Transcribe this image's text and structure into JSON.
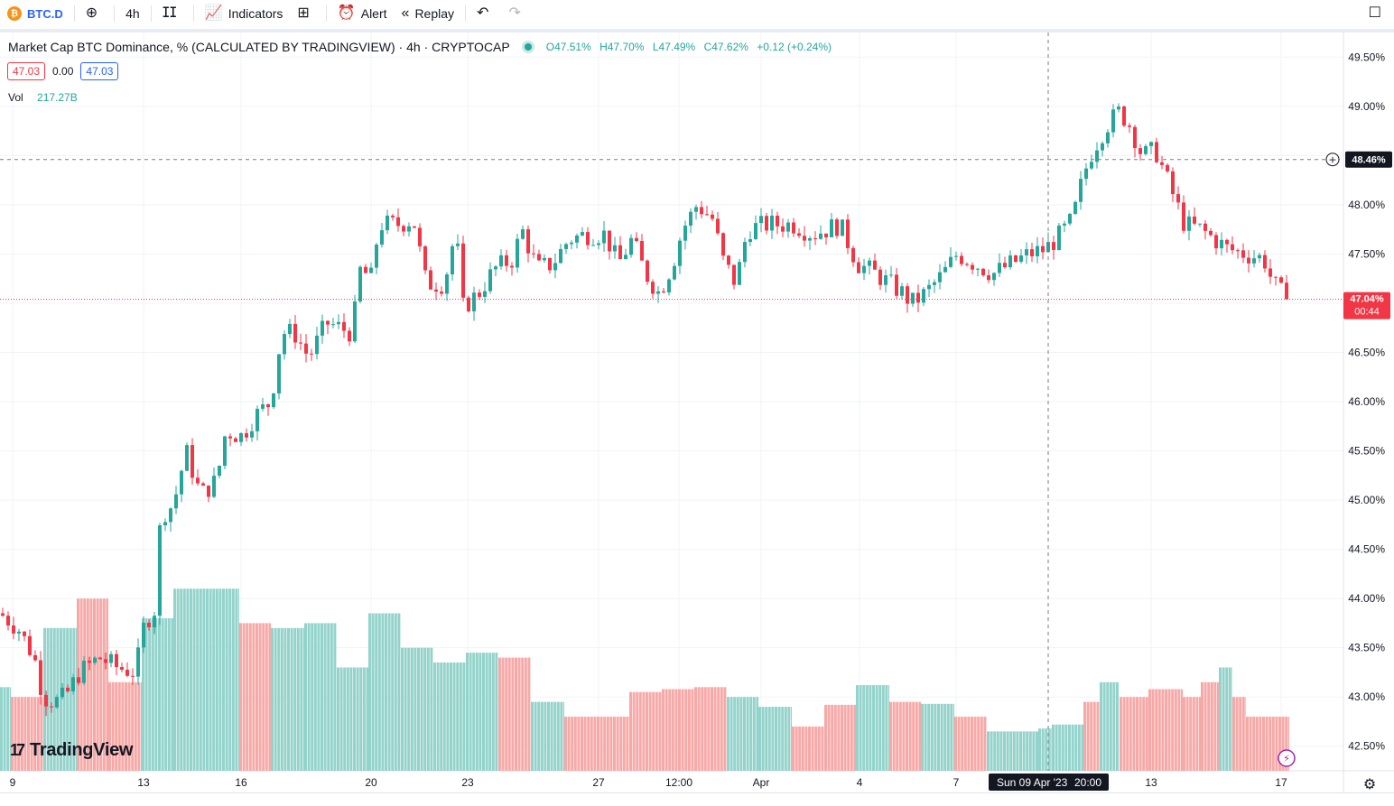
{
  "toolbar": {
    "symbol": "BTC.D",
    "symbol_icon": "bitcoin-icon",
    "interval": "4h",
    "indicators_label": "Indicators",
    "alert_label": "Alert",
    "replay_label": "Replay"
  },
  "legend": {
    "title": "Market Cap BTC Dominance, % (CALCULATED BY TRADINGVIEW) · 4h · CRYPTOCAP",
    "open": "O47.51%",
    "high": "H47.70%",
    "low": "L47.49%",
    "close": "C47.62%",
    "change": "+0.12 (+0.24%)",
    "study_left": "47.03",
    "study_mid": "0.00",
    "study_right": "47.03",
    "volume_label": "Vol",
    "volume_value": "217.27B"
  },
  "crosshair": {
    "price_label": "48.46%",
    "time_label": "Sun 09 Apr '23",
    "time_hour": "20:00"
  },
  "last_price": {
    "label": "47.04%",
    "countdown": "00:44"
  },
  "branding": "TradingView",
  "colors": {
    "up": "#26a69a",
    "down": "#f23645",
    "up_vol": "#94d3cb",
    "down_vol": "#f7a9a7",
    "accent": "#2962ff"
  },
  "chart_data": {
    "type": "candlestick",
    "ylim": [
      42.25,
      49.75
    ],
    "yticks": [
      "42.50%",
      "43.00%",
      "43.50%",
      "44.00%",
      "44.50%",
      "45.00%",
      "45.50%",
      "46.00%",
      "46.50%",
      "47.00%",
      "47.50%",
      "48.00%",
      "48.50%",
      "49.00%",
      "49.50%"
    ],
    "xticks": [
      "9",
      "13",
      "16",
      "20",
      "23",
      "27",
      "12:00",
      "Apr",
      "4",
      "7",
      "13",
      "17"
    ],
    "anchors": [
      [
        0,
        43.85
      ],
      [
        20,
        43.7
      ],
      [
        38,
        43.4
      ],
      [
        48,
        43.0
      ],
      [
        60,
        42.95
      ],
      [
        72,
        43.0
      ],
      [
        88,
        43.25
      ],
      [
        110,
        43.4
      ],
      [
        130,
        43.3
      ],
      [
        150,
        43.25
      ],
      [
        160,
        43.75
      ],
      [
        172,
        43.9
      ],
      [
        178,
        44.85
      ],
      [
        192,
        44.95
      ],
      [
        206,
        45.5
      ],
      [
        222,
        45.05
      ],
      [
        240,
        45.2
      ],
      [
        250,
        45.7
      ],
      [
        268,
        45.65
      ],
      [
        282,
        45.85
      ],
      [
        300,
        46.0
      ],
      [
        312,
        46.7
      ],
      [
        326,
        46.7
      ],
      [
        342,
        46.45
      ],
      [
        362,
        46.8
      ],
      [
        390,
        46.7
      ],
      [
        400,
        47.4
      ],
      [
        410,
        47.2
      ],
      [
        420,
        47.8
      ],
      [
        440,
        47.8
      ],
      [
        458,
        47.85
      ],
      [
        472,
        47.2
      ],
      [
        492,
        47.2
      ],
      [
        505,
        47.75
      ],
      [
        512,
        46.95
      ],
      [
        530,
        47.1
      ],
      [
        548,
        47.35
      ],
      [
        568,
        47.45
      ],
      [
        578,
        47.75
      ],
      [
        595,
        47.35
      ],
      [
        612,
        47.4
      ],
      [
        630,
        47.65
      ],
      [
        650,
        47.7
      ],
      [
        670,
        47.7
      ],
      [
        685,
        47.4
      ],
      [
        700,
        47.65
      ],
      [
        715,
        47.3
      ],
      [
        730,
        47.1
      ],
      [
        745,
        47.4
      ],
      [
        756,
        47.75
      ],
      [
        772,
        48.0
      ],
      [
        790,
        47.85
      ],
      [
        800,
        47.45
      ],
      [
        815,
        47.2
      ],
      [
        828,
        47.75
      ],
      [
        850,
        47.8
      ],
      [
        880,
        47.8
      ],
      [
        900,
        47.7
      ],
      [
        930,
        47.8
      ],
      [
        950,
        47.4
      ],
      [
        970,
        47.3
      ],
      [
        985,
        47.2
      ],
      [
        1000,
        47.1
      ],
      [
        1010,
        47.0
      ],
      [
        1025,
        47.1
      ],
      [
        1045,
        47.3
      ],
      [
        1060,
        47.5
      ],
      [
        1080,
        47.4
      ],
      [
        1100,
        47.3
      ],
      [
        1120,
        47.4
      ],
      [
        1140,
        47.5
      ],
      [
        1158,
        47.55
      ],
      [
        1175,
        47.7
      ],
      [
        1188,
        47.85
      ],
      [
        1200,
        48.3
      ],
      [
        1210,
        48.55
      ],
      [
        1225,
        48.8
      ],
      [
        1240,
        48.95
      ],
      [
        1252,
        48.8
      ],
      [
        1265,
        48.5
      ],
      [
        1280,
        48.55
      ],
      [
        1295,
        48.2
      ],
      [
        1312,
        47.8
      ],
      [
        1330,
        47.75
      ],
      [
        1345,
        47.65
      ],
      [
        1360,
        47.55
      ],
      [
        1380,
        47.5
      ],
      [
        1400,
        47.45
      ],
      [
        1410,
        47.2
      ],
      [
        1425,
        47.04
      ]
    ],
    "volume_segments": [
      [
        0,
        12,
        43.1,
        "up"
      ],
      [
        12,
        48,
        43.0,
        "down"
      ],
      [
        48,
        85,
        43.7,
        "up"
      ],
      [
        85,
        120,
        44.0,
        "down"
      ],
      [
        120,
        157,
        43.15,
        "down"
      ],
      [
        157,
        192,
        43.8,
        "up"
      ],
      [
        192,
        265,
        44.1,
        "up"
      ],
      [
        265,
        300,
        43.75,
        "down"
      ],
      [
        300,
        337,
        43.7,
        "up"
      ],
      [
        337,
        373,
        43.75,
        "up"
      ],
      [
        373,
        408,
        43.3,
        "up"
      ],
      [
        408,
        444,
        43.85,
        "up"
      ],
      [
        444,
        480,
        43.5,
        "up"
      ],
      [
        480,
        516,
        43.35,
        "up"
      ],
      [
        516,
        552,
        43.45,
        "up"
      ],
      [
        552,
        588,
        43.4,
        "down"
      ],
      [
        588,
        625,
        42.95,
        "up"
      ],
      [
        625,
        697,
        42.8,
        "down"
      ],
      [
        697,
        733,
        43.05,
        "down"
      ],
      [
        733,
        769,
        43.08,
        "down"
      ],
      [
        769,
        805,
        43.1,
        "down"
      ],
      [
        805,
        840,
        43.0,
        "up"
      ],
      [
        840,
        877,
        42.9,
        "up"
      ],
      [
        877,
        913,
        42.7,
        "down"
      ],
      [
        913,
        948,
        42.92,
        "down"
      ],
      [
        948,
        985,
        43.12,
        "up"
      ],
      [
        985,
        1020,
        42.95,
        "down"
      ],
      [
        1020,
        1057,
        42.93,
        "up"
      ],
      [
        1057,
        1093,
        42.8,
        "down"
      ],
      [
        1093,
        1150,
        42.65,
        "up"
      ],
      [
        1150,
        1165,
        42.68,
        "up"
      ],
      [
        1165,
        1200,
        42.72,
        "up"
      ],
      [
        1200,
        1218,
        42.95,
        "down"
      ],
      [
        1218,
        1240,
        43.15,
        "up"
      ],
      [
        1240,
        1272,
        43.0,
        "down"
      ],
      [
        1272,
        1310,
        43.08,
        "down"
      ],
      [
        1310,
        1330,
        43.0,
        "down"
      ],
      [
        1330,
        1350,
        43.15,
        "down"
      ],
      [
        1350,
        1365,
        43.3,
        "up"
      ],
      [
        1365,
        1380,
        43.0,
        "down"
      ],
      [
        1380,
        1428,
        42.8,
        "down"
      ]
    ]
  }
}
